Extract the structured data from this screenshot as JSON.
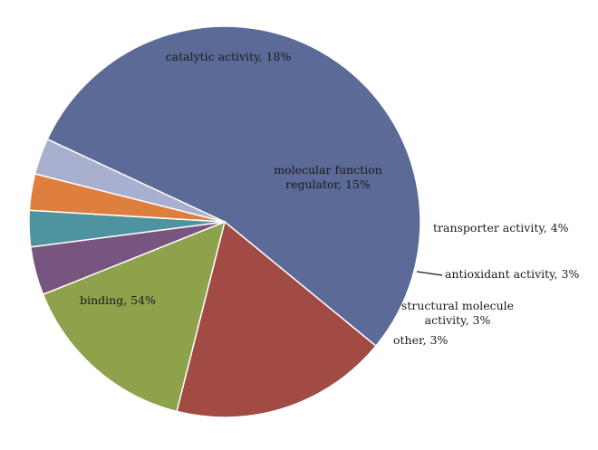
{
  "chart_data": {
    "type": "pie",
    "title": "",
    "slices": [
      {
        "name": "binding",
        "value": 54,
        "label": [
          "binding, 54%"
        ],
        "color": "#5b6a96"
      },
      {
        "name": "catalytic activity",
        "value": 18,
        "label": [
          "catalytic activity, 18%"
        ],
        "color": "#a24a44"
      },
      {
        "name": "molecular function regulator",
        "value": 15,
        "label": [
          "molecular function",
          "regulator, 15%"
        ],
        "color": "#8da24b"
      },
      {
        "name": "transporter activity",
        "value": 4,
        "label": [
          "transporter activity, 4%"
        ],
        "color": "#77557f"
      },
      {
        "name": "antioxidant activity",
        "value": 3,
        "label": [
          "antioxidant activity, 3%"
        ],
        "color": "#4f92a0"
      },
      {
        "name": "structural molecule activity",
        "value": 3,
        "label": [
          "structural molecule",
          "activity, 3%"
        ],
        "color": "#df7f3e"
      },
      {
        "name": "other",
        "value": 3,
        "label": [
          "other, 3%"
        ],
        "color": "#a9b0cf"
      }
    ],
    "legend": "none"
  }
}
